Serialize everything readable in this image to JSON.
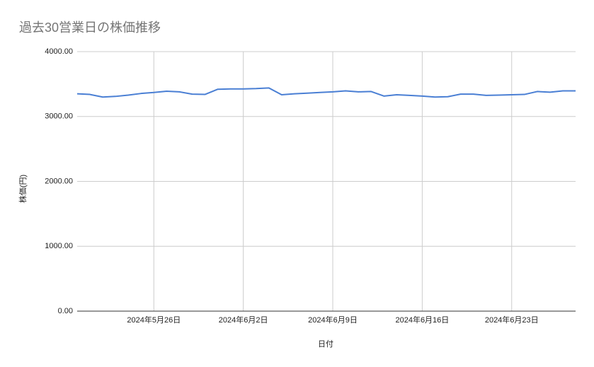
{
  "chart_data": {
    "type": "line",
    "title": "過去30営業日の株価推移",
    "x_label": "日付",
    "y_label": "株価(円)",
    "x": [
      "2024-05-20",
      "2024-05-21",
      "2024-05-22",
      "2024-05-23",
      "2024-05-24",
      "2024-05-25",
      "2024-05-26",
      "2024-05-27",
      "2024-05-28",
      "2024-05-29",
      "2024-05-30",
      "2024-05-31",
      "2024-06-01",
      "2024-06-02",
      "2024-06-03",
      "2024-06-04",
      "2024-06-05",
      "2024-06-06",
      "2024-06-07",
      "2024-06-08",
      "2024-06-09",
      "2024-06-10",
      "2024-06-11",
      "2024-06-12",
      "2024-06-13",
      "2024-06-14",
      "2024-06-15",
      "2024-06-16",
      "2024-06-17",
      "2024-06-18",
      "2024-06-19",
      "2024-06-20",
      "2024-06-21",
      "2024-06-22",
      "2024-06-23",
      "2024-06-24",
      "2024-06-25",
      "2024-06-26",
      "2024-06-27",
      "2024-06-28"
    ],
    "series": [
      {
        "name": "株価",
        "color": "#4a7fd4",
        "values": [
          3350,
          3340,
          3300,
          3310,
          3330,
          3355,
          3370,
          3390,
          3380,
          3345,
          3340,
          3420,
          3425,
          3425,
          3430,
          3440,
          3335,
          3350,
          3360,
          3370,
          3380,
          3395,
          3380,
          3385,
          3315,
          3335,
          3325,
          3315,
          3300,
          3305,
          3345,
          3345,
          3325,
          3330,
          3335,
          3340,
          3385,
          3375,
          3395,
          3395
        ]
      }
    ],
    "xlim": [
      "2024-05-20",
      "2024-06-28"
    ],
    "xticks": [
      {
        "value": "2024-05-26",
        "label": "2024年5月26日"
      },
      {
        "value": "2024-06-02",
        "label": "2024年6月2日"
      },
      {
        "value": "2024-06-09",
        "label": "2024年6月9日"
      },
      {
        "value": "2024-06-16",
        "label": "2024年6月16日"
      },
      {
        "value": "2024-06-23",
        "label": "2024年6月23日"
      }
    ],
    "ylim": [
      0,
      4000
    ],
    "yticks": [
      {
        "value": 0,
        "label": "0.00"
      },
      {
        "value": 1000,
        "label": "1000.00"
      },
      {
        "value": 2000,
        "label": "2000.00"
      },
      {
        "value": 3000,
        "label": "3000.00"
      },
      {
        "value": 4000,
        "label": "4000.00"
      }
    ],
    "grid": true
  }
}
